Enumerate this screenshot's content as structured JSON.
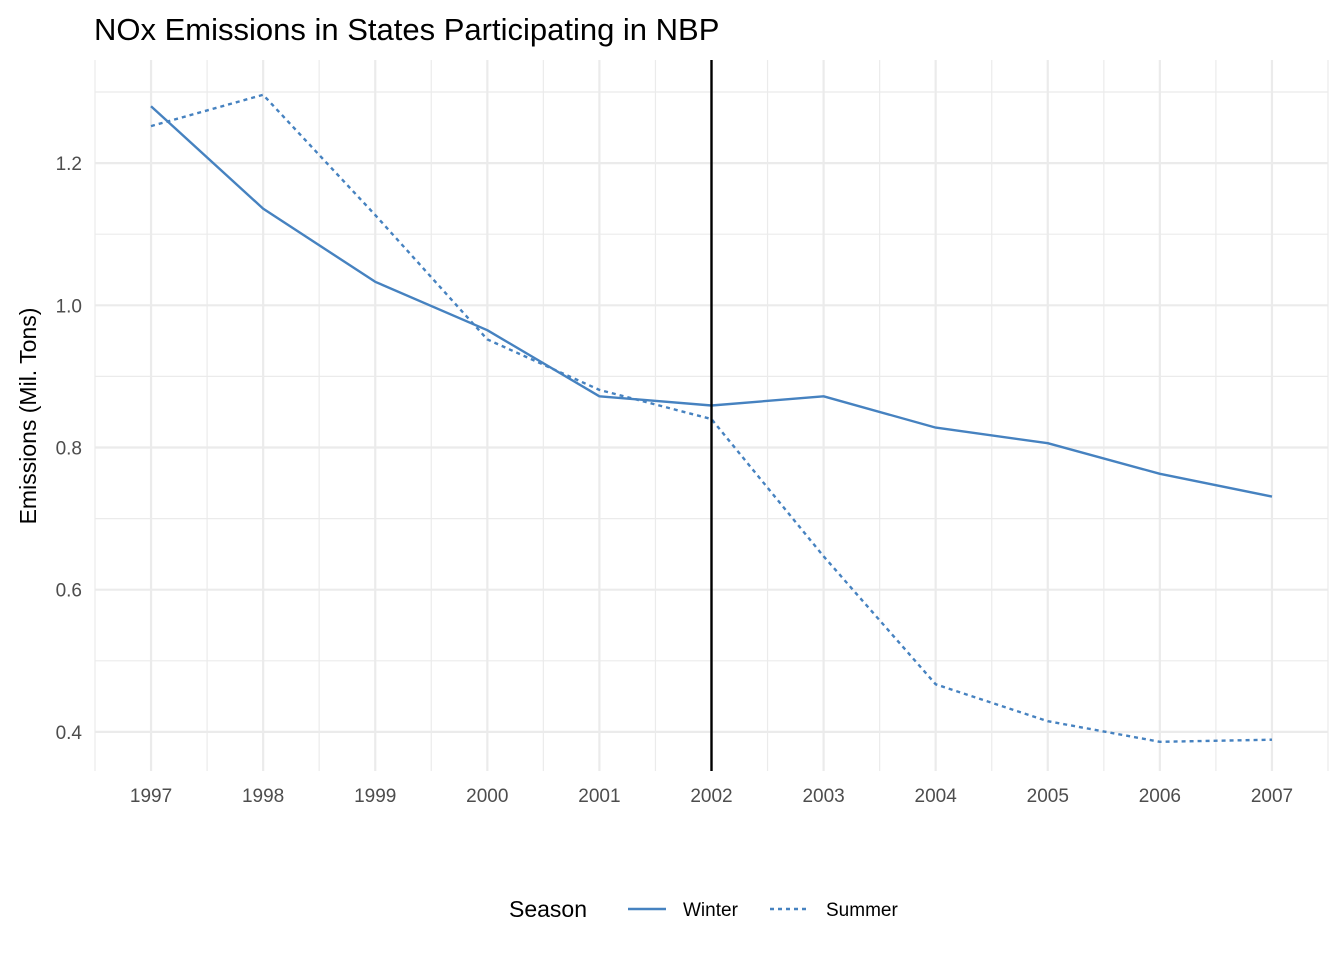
{
  "chart_data": {
    "type": "line",
    "title": "NOx Emissions in States Participating in NBP",
    "xlabel": "",
    "ylabel": "Emissions (Mil. Tons)",
    "x": [
      1997,
      1998,
      1999,
      2000,
      2001,
      2002,
      2003,
      2004,
      2005,
      2006,
      2007
    ],
    "x_tick_labels": [
      "1997",
      "1998",
      "1999",
      "2000",
      "2001",
      "2002",
      "2003",
      "2004",
      "2005",
      "2006",
      "2007"
    ],
    "y_ticks": [
      0.4,
      0.6,
      0.8,
      1.0,
      1.2
    ],
    "y_tick_labels": [
      "0.4",
      "0.6",
      "0.8",
      "1.0",
      "1.2"
    ],
    "xlim": [
      1996.5,
      2007.5
    ],
    "ylim": [
      0.345,
      1.345
    ],
    "grid": true,
    "series": [
      {
        "name": "Winter",
        "linetype": "solid",
        "values": [
          1.28,
          1.136,
          1.033,
          0.965,
          0.872,
          0.859,
          0.872,
          0.828,
          0.806,
          0.763,
          0.731
        ]
      },
      {
        "name": "Summer",
        "linetype": "dotted",
        "values": [
          1.252,
          1.296,
          1.127,
          0.952,
          0.881,
          0.84,
          0.647,
          0.467,
          0.415,
          0.386,
          0.389
        ]
      }
    ],
    "vline": {
      "x": 2002,
      "color": "#000000"
    },
    "legend": {
      "title": "Season",
      "position": "bottom"
    },
    "colors": {
      "series": "#4682c0",
      "grid": "#ebebeb",
      "vline": "#000000"
    }
  }
}
